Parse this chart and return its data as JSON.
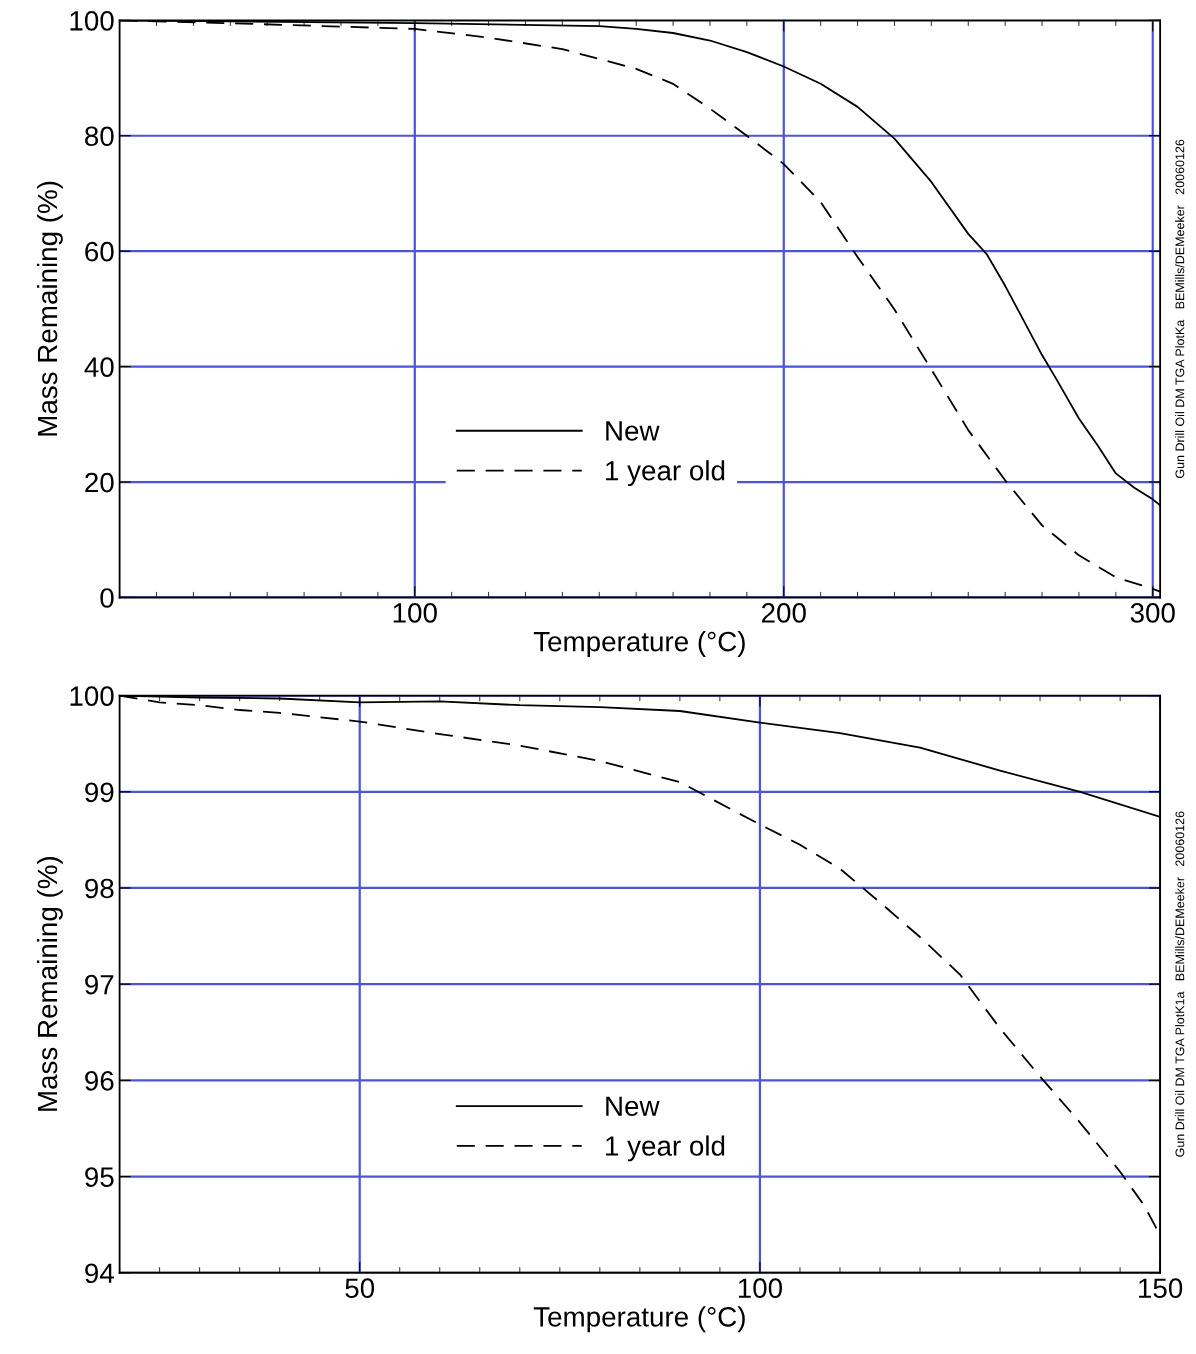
{
  "chart_data": [
    {
      "type": "line",
      "xlabel": "Temperature (°C)",
      "ylabel": "Mass Remaining (%)",
      "xlim": [
        20,
        302
      ],
      "ylim": [
        0,
        100
      ],
      "xticks": [
        100,
        200,
        300
      ],
      "yticks": [
        0,
        20,
        40,
        60,
        80,
        100
      ],
      "grid": true,
      "legend": "center",
      "annotations": [
        "Gun Drill Oil DM TGA PlotKa   BEMills/DEMeeker   20060126"
      ],
      "series": [
        {
          "name": "New",
          "color": "#000000",
          "line_style": "solid",
          "x": [
            20,
            50,
            100,
            150,
            160,
            170,
            180,
            190,
            200,
            210,
            220,
            230,
            240,
            250,
            255,
            260,
            270,
            274,
            280,
            285,
            290,
            295,
            300,
            302
          ],
          "values": [
            100,
            99.8,
            99.5,
            99,
            98.5,
            97.8,
            96.5,
            94.5,
            92,
            89,
            85,
            79.5,
            72,
            63,
            59.5,
            54,
            42,
            37.7,
            31,
            26.4,
            21.5,
            19,
            17,
            16
          ]
        },
        {
          "name": "1 year old",
          "color": "#000000",
          "line_style": "dashed",
          "x": [
            20,
            50,
            100,
            120,
            140,
            160,
            170,
            180,
            190,
            200,
            210,
            220,
            230,
            240,
            250,
            260,
            270,
            280,
            290,
            300,
            302
          ],
          "values": [
            100,
            99.5,
            98.5,
            97,
            95,
            91.6,
            89,
            84.7,
            80,
            75.1,
            68.5,
            59,
            49.9,
            39.5,
            29,
            20.3,
            12.5,
            7.3,
            3.5,
            1.5,
            1
          ]
        }
      ]
    },
    {
      "type": "line",
      "xlabel": "Temperature (°C)",
      "ylabel": "Mass Remaining (%)",
      "xlim": [
        20,
        150
      ],
      "ylim": [
        94,
        100
      ],
      "xticks": [
        50,
        100,
        150
      ],
      "yticks": [
        94,
        95,
        96,
        97,
        98,
        99,
        100
      ],
      "grid": true,
      "legend": "center",
      "annotations": [
        "Gun Drill Oil DM TGA PlotK1a   BEMills/DEMeeker   20060126"
      ],
      "series": [
        {
          "name": "New",
          "color": "#000000",
          "line_style": "solid",
          "x": [
            20,
            30,
            40,
            50,
            60,
            70,
            80,
            90,
            100,
            110,
            120,
            130,
            140,
            150
          ],
          "values": [
            100,
            99.98,
            99.97,
            99.93,
            99.94,
            99.9,
            99.88,
            99.84,
            99.72,
            99.61,
            99.46,
            99.22,
            99.0,
            98.74
          ]
        },
        {
          "name": "1 year old",
          "color": "#000000",
          "line_style": "dashed",
          "x": [
            20,
            25,
            30,
            35,
            40,
            50,
            60,
            70,
            80,
            90,
            100,
            105,
            110,
            115,
            120,
            125,
            130,
            135,
            140,
            145,
            148,
            150
          ],
          "values": [
            100,
            99.93,
            99.9,
            99.85,
            99.82,
            99.73,
            99.6,
            99.48,
            99.32,
            99.1,
            98.66,
            98.45,
            98.2,
            97.85,
            97.49,
            97.1,
            96.54,
            96.04,
            95.56,
            95.05,
            94.7,
            94.39
          ]
        }
      ]
    }
  ]
}
